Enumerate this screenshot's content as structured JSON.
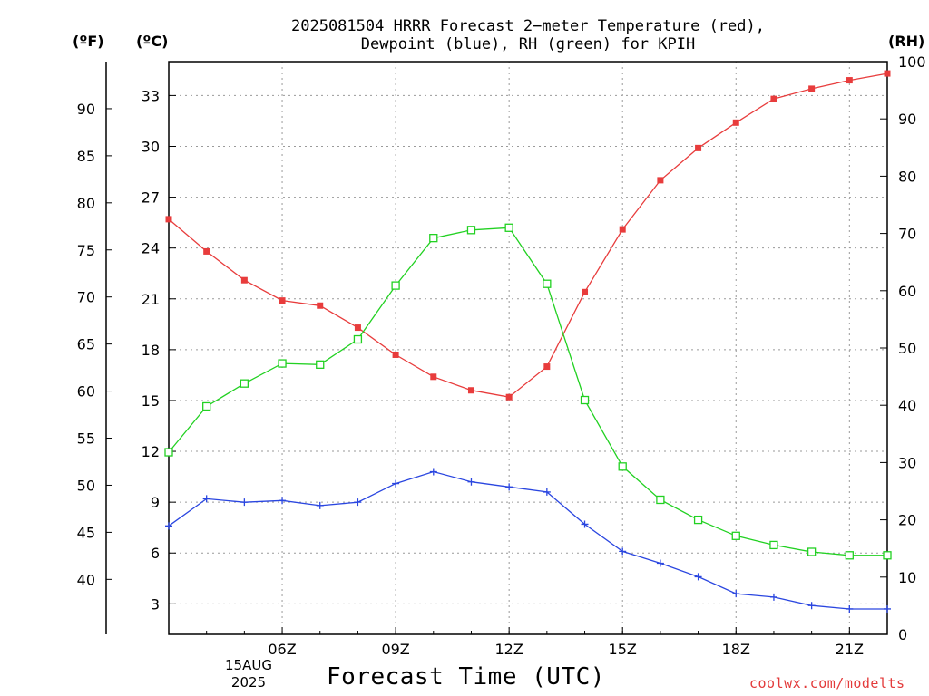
{
  "chart_data": {
    "type": "line",
    "title": "2025081504 HRRR Forecast 2−meter Temperature (red),",
    "subtitle": "Dewpoint (blue), RH (green) for KPIH",
    "xlabel": "Forecast Time (UTC)",
    "units": {
      "fahrenheit": "(ºF)",
      "celsius": "(ºC)",
      "rh": "(RH)"
    },
    "date_label": [
      "15AUG",
      "2025"
    ],
    "credit": "coolwx.com/modelts",
    "x_hours": [
      3,
      4,
      5,
      6,
      7,
      8,
      9,
      10,
      11,
      12,
      13,
      14,
      15,
      16,
      17,
      18,
      19,
      20,
      21,
      22
    ],
    "x_ticks": [
      {
        "hour": 6,
        "label": "06Z"
      },
      {
        "hour": 9,
        "label": "09Z"
      },
      {
        "hour": 12,
        "label": "12Z"
      },
      {
        "hour": 15,
        "label": "15Z"
      },
      {
        "hour": 18,
        "label": "18Z"
      },
      {
        "hour": 21,
        "label": "21Z"
      }
    ],
    "xlim": [
      3,
      22
    ],
    "celsius_axis": {
      "ylim": [
        1.2,
        35.0
      ],
      "ticks": [
        "3",
        "6",
        "9",
        "12",
        "15",
        "18",
        "21",
        "24",
        "27",
        "30",
        "33"
      ]
    },
    "fahrenheit_axis": {
      "ticks": [
        "40",
        "45",
        "50",
        "55",
        "60",
        "65",
        "70",
        "75",
        "80",
        "85",
        "90"
      ]
    },
    "rh_axis": {
      "ylim": [
        0,
        100
      ],
      "ticks": [
        "0",
        "10",
        "20",
        "30",
        "40",
        "50",
        "60",
        "70",
        "80",
        "90",
        "100"
      ]
    },
    "grid": true,
    "series": [
      {
        "name": "Temperature",
        "axis": "celsius",
        "color": "#e83c3c",
        "marker": "filled-square",
        "values": [
          25.7,
          23.8,
          22.1,
          20.9,
          20.6,
          19.3,
          17.7,
          16.4,
          15.6,
          15.2,
          17.0,
          21.4,
          25.1,
          28.0,
          29.9,
          31.4,
          32.8,
          33.4,
          33.9,
          34.3
        ]
      },
      {
        "name": "Dewpoint",
        "axis": "celsius",
        "color": "#2a46e0",
        "marker": "plus",
        "values": [
          7.6,
          9.2,
          9.0,
          9.1,
          8.8,
          9.0,
          10.1,
          10.8,
          10.2,
          9.9,
          9.6,
          7.7,
          6.1,
          5.4,
          4.6,
          3.6,
          3.4,
          2.9,
          2.7,
          2.7
        ]
      },
      {
        "name": "RH",
        "axis": "rh",
        "color": "#22d122",
        "marker": "open-square",
        "values": [
          31.8,
          39.8,
          43.8,
          47.3,
          47.1,
          51.5,
          60.9,
          69.2,
          70.6,
          71.0,
          61.2,
          40.9,
          29.3,
          23.5,
          20.0,
          17.2,
          15.6,
          14.4,
          13.8,
          13.8
        ]
      }
    ]
  }
}
